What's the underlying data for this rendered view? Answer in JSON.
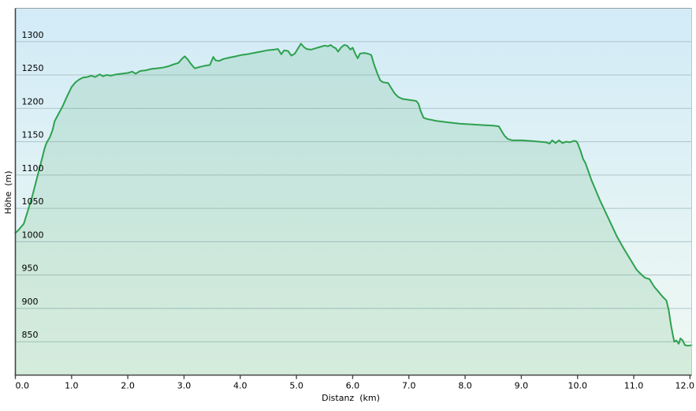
{
  "window": {
    "background": "#ffffff"
  },
  "axes": {
    "x_title": "Distanz  (km)",
    "y_title": "Höhe  (m)"
  },
  "colors": {
    "line": "#2da14e",
    "area_fill": "rgba(72,166,101,0.16)",
    "bg_top": "#d2ebf7",
    "bg_bottom": "#f0f9f3",
    "grid": "#aec4ca",
    "axis_dark": "#444444",
    "border_top": "#93a1a7",
    "border_right": "#bcc8cd",
    "tick": "#444444",
    "text": "#000000"
  },
  "chart_data": {
    "type": "area",
    "title": "",
    "xlabel": "Distanz  (km)",
    "ylabel": "Höhe  (m)",
    "xlim": [
      0,
      12.03
    ],
    "ylim": [
      800,
      1350
    ],
    "grid": "horizontal",
    "legend": "none",
    "x_ticks": [
      {
        "value": 0,
        "label": "0.0"
      },
      {
        "value": 1,
        "label": "1.0"
      },
      {
        "value": 2,
        "label": "2.0"
      },
      {
        "value": 3,
        "label": "3.0"
      },
      {
        "value": 4,
        "label": "4.0"
      },
      {
        "value": 5,
        "label": "5.0"
      },
      {
        "value": 6,
        "label": "6.0"
      },
      {
        "value": 7,
        "label": "7.0"
      },
      {
        "value": 8,
        "label": "8.0"
      },
      {
        "value": 9,
        "label": "9.0"
      },
      {
        "value": 10,
        "label": "10.0"
      },
      {
        "value": 11,
        "label": "11.0"
      },
      {
        "value": 12,
        "label": "12.0"
      }
    ],
    "y_ticks": [
      {
        "value": 1300,
        "label": "1300"
      },
      {
        "value": 1250,
        "label": "1250"
      },
      {
        "value": 1200,
        "label": "1200"
      },
      {
        "value": 1150,
        "label": "1150"
      },
      {
        "value": 1100,
        "label": "1100"
      },
      {
        "value": 1050,
        "label": "1050"
      },
      {
        "value": 1000,
        "label": "1000"
      },
      {
        "value": 950,
        "label": "950"
      },
      {
        "value": 900,
        "label": "900"
      },
      {
        "value": 850,
        "label": "850"
      }
    ],
    "series": [
      {
        "name": "elevation-profile",
        "unit_x": "km",
        "unit_y": "m",
        "points": [
          [
            0,
            1013
          ],
          [
            0.05,
            1017
          ],
          [
            0.1,
            1022
          ],
          [
            0.15,
            1027
          ],
          [
            0.22,
            1046
          ],
          [
            0.3,
            1068
          ],
          [
            0.38,
            1094
          ],
          [
            0.46,
            1120
          ],
          [
            0.52,
            1140
          ],
          [
            0.56,
            1149
          ],
          [
            0.61,
            1156
          ],
          [
            0.66,
            1167
          ],
          [
            0.7,
            1181
          ],
          [
            0.77,
            1192
          ],
          [
            0.84,
            1203
          ],
          [
            0.92,
            1218
          ],
          [
            1.0,
            1232
          ],
          [
            1.07,
            1239
          ],
          [
            1.13,
            1243
          ],
          [
            1.2,
            1246
          ],
          [
            1.28,
            1247
          ],
          [
            1.35,
            1249
          ],
          [
            1.42,
            1247
          ],
          [
            1.5,
            1251
          ],
          [
            1.56,
            1248
          ],
          [
            1.62,
            1250
          ],
          [
            1.7,
            1249
          ],
          [
            1.8,
            1251
          ],
          [
            1.9,
            1252
          ],
          [
            2.0,
            1253
          ],
          [
            2.08,
            1255
          ],
          [
            2.14,
            1252
          ],
          [
            2.22,
            1256
          ],
          [
            2.32,
            1257
          ],
          [
            2.42,
            1259
          ],
          [
            2.52,
            1260
          ],
          [
            2.62,
            1261
          ],
          [
            2.72,
            1263
          ],
          [
            2.82,
            1266
          ],
          [
            2.9,
            1268
          ],
          [
            2.96,
            1274
          ],
          [
            3.01,
            1278
          ],
          [
            3.06,
            1274
          ],
          [
            3.12,
            1267
          ],
          [
            3.19,
            1260
          ],
          [
            3.28,
            1262
          ],
          [
            3.38,
            1264
          ],
          [
            3.46,
            1265
          ],
          [
            3.52,
            1277
          ],
          [
            3.56,
            1272
          ],
          [
            3.62,
            1271
          ],
          [
            3.7,
            1274
          ],
          [
            3.8,
            1276
          ],
          [
            3.92,
            1278
          ],
          [
            4.02,
            1280
          ],
          [
            4.12,
            1281
          ],
          [
            4.24,
            1283
          ],
          [
            4.36,
            1285
          ],
          [
            4.48,
            1287
          ],
          [
            4.6,
            1288
          ],
          [
            4.67,
            1289
          ],
          [
            4.73,
            1281
          ],
          [
            4.78,
            1287
          ],
          [
            4.85,
            1286
          ],
          [
            4.91,
            1279
          ],
          [
            4.97,
            1282
          ],
          [
            5.03,
            1290
          ],
          [
            5.08,
            1297
          ],
          [
            5.13,
            1292
          ],
          [
            5.18,
            1289
          ],
          [
            5.26,
            1288
          ],
          [
            5.34,
            1290
          ],
          [
            5.42,
            1292
          ],
          [
            5.5,
            1294
          ],
          [
            5.56,
            1293
          ],
          [
            5.61,
            1295
          ],
          [
            5.65,
            1292
          ],
          [
            5.7,
            1290
          ],
          [
            5.74,
            1285
          ],
          [
            5.79,
            1291
          ],
          [
            5.85,
            1295
          ],
          [
            5.9,
            1294
          ],
          [
            5.96,
            1288
          ],
          [
            6.0,
            1291
          ],
          [
            6.05,
            1281
          ],
          [
            6.09,
            1275
          ],
          [
            6.13,
            1282
          ],
          [
            6.2,
            1283
          ],
          [
            6.27,
            1282
          ],
          [
            6.33,
            1280
          ],
          [
            6.38,
            1266
          ],
          [
            6.44,
            1252
          ],
          [
            6.49,
            1242
          ],
          [
            6.54,
            1239
          ],
          [
            6.63,
            1238
          ],
          [
            6.69,
            1230
          ],
          [
            6.75,
            1222
          ],
          [
            6.81,
            1217
          ],
          [
            6.89,
            1214
          ],
          [
            6.97,
            1213
          ],
          [
            7.06,
            1212
          ],
          [
            7.13,
            1211
          ],
          [
            7.17,
            1207
          ],
          [
            7.21,
            1196
          ],
          [
            7.26,
            1186
          ],
          [
            7.32,
            1184
          ],
          [
            7.5,
            1181
          ],
          [
            7.7,
            1179
          ],
          [
            7.9,
            1177
          ],
          [
            8.1,
            1176
          ],
          [
            8.3,
            1175
          ],
          [
            8.5,
            1174
          ],
          [
            8.6,
            1173
          ],
          [
            8.65,
            1166
          ],
          [
            8.7,
            1159
          ],
          [
            8.76,
            1154
          ],
          [
            8.84,
            1152
          ],
          [
            9.0,
            1152
          ],
          [
            9.18,
            1151
          ],
          [
            9.32,
            1150
          ],
          [
            9.44,
            1149
          ],
          [
            9.5,
            1147
          ],
          [
            9.55,
            1152
          ],
          [
            9.61,
            1148
          ],
          [
            9.67,
            1152
          ],
          [
            9.73,
            1148
          ],
          [
            9.8,
            1150
          ],
          [
            9.86,
            1149
          ],
          [
            9.93,
            1151
          ],
          [
            9.97,
            1151
          ],
          [
            10.0,
            1148
          ],
          [
            10.05,
            1137
          ],
          [
            10.1,
            1124
          ],
          [
            10.14,
            1118
          ],
          [
            10.25,
            1092
          ],
          [
            10.4,
            1062
          ],
          [
            10.55,
            1035
          ],
          [
            10.7,
            1008
          ],
          [
            10.82,
            990
          ],
          [
            10.95,
            972
          ],
          [
            11.05,
            958
          ],
          [
            11.12,
            952
          ],
          [
            11.2,
            946
          ],
          [
            11.28,
            944
          ],
          [
            11.36,
            933
          ],
          [
            11.44,
            925
          ],
          [
            11.52,
            917
          ],
          [
            11.58,
            912
          ],
          [
            11.62,
            898
          ],
          [
            11.66,
            876
          ],
          [
            11.7,
            858
          ],
          [
            11.72,
            850
          ],
          [
            11.76,
            852
          ],
          [
            11.8,
            847
          ],
          [
            11.83,
            855
          ],
          [
            11.87,
            852
          ],
          [
            11.91,
            845
          ],
          [
            11.97,
            844
          ],
          [
            12.03,
            845
          ]
        ]
      }
    ]
  }
}
